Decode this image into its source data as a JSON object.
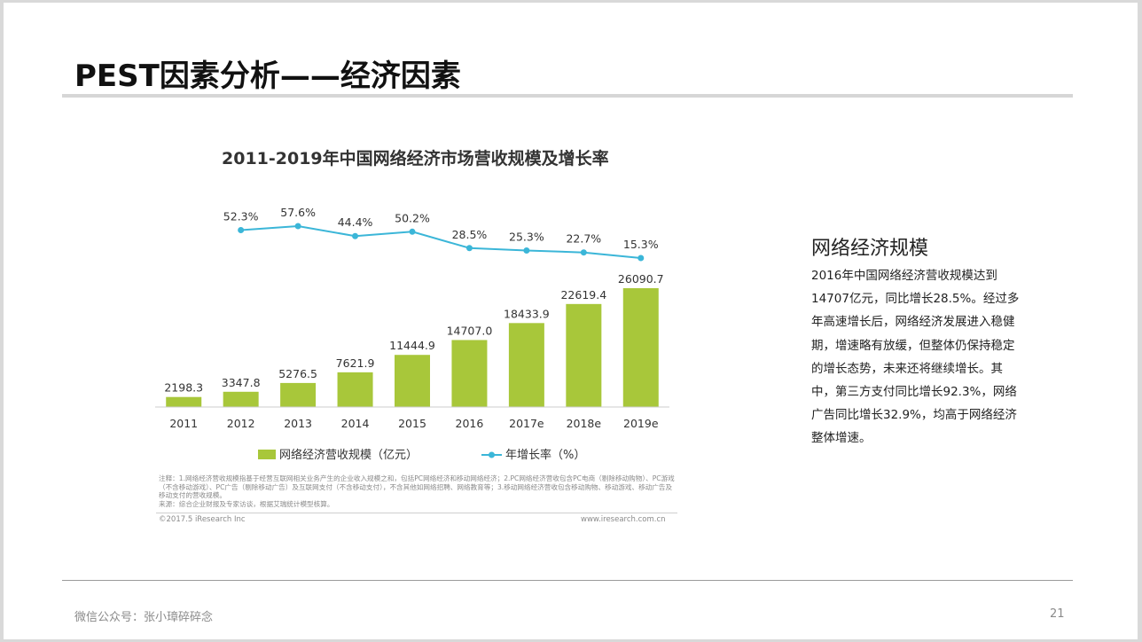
{
  "slide": {
    "title": "PEST因素分析——经济因素",
    "side_heading": "网络经济规模",
    "side_body": "2016年中国网络经济营收规模达到14707亿元，同比增长28.5%。经过多年高速增长后，网络经济发展进入稳健期，增速略有放缓，但整体仍保持稳定的增长态势，未来还将继续增长。其中，第三方支付同比增长92.3%，网络广告同比增长32.9%，均高于网络经济整体增速。",
    "footer_left": "微信公众号：张小璋碎碎念",
    "page_number": "21"
  },
  "chart_data": {
    "type": "bar",
    "title": "2011-2019年中国网络经济市场营收规模及增长率",
    "categories": [
      "2011",
      "2012",
      "2013",
      "2014",
      "2015",
      "2016",
      "2017e",
      "2018e",
      "2019e"
    ],
    "series": [
      {
        "name": "网络经济营收规模（亿元）",
        "type": "bar",
        "color": "#a8c73a",
        "values": [
          2198.3,
          3347.8,
          5276.5,
          7621.9,
          11444.9,
          14707.0,
          18433.9,
          22619.4,
          26090.7
        ],
        "labels": [
          "2198.3",
          "3347.8",
          "5276.5",
          "7621.9",
          "11444.9",
          "14707.0",
          "18433.9",
          "22619.4",
          "26090.7"
        ]
      },
      {
        "name": "年增长率（%）",
        "type": "line",
        "color": "#3bb6d8",
        "values": [
          null,
          52.3,
          57.6,
          44.4,
          50.2,
          28.5,
          25.3,
          22.7,
          15.3
        ],
        "labels": [
          "",
          "52.3%",
          "57.6%",
          "44.4%",
          "50.2%",
          "28.5%",
          "25.3%",
          "22.7%",
          "15.3%"
        ]
      }
    ],
    "legend_position": "bottom",
    "note": "注释：1.网络经济营收规模指基于经营互联网相关业务产生的企业收入规模之和，包括PC网络经济和移动网络经济；2.PC网络经济营收包含PC电商（剔除移动购物）、PC游戏（不含移动游戏）、PC广告（剔除移动广告）及互联网支付（不含移动支付），不含其他如网络招聘、网络教育等；3.移动网络经济营收包含移动购物、移动游戏、移动广告及移动支付的营收规模。",
    "source": "来源：综合企业财报及专家访谈，根据艾瑞统计模型核算。",
    "copyright": "©2017.5 iResearch Inc",
    "website": "www.iresearch.com.cn"
  }
}
